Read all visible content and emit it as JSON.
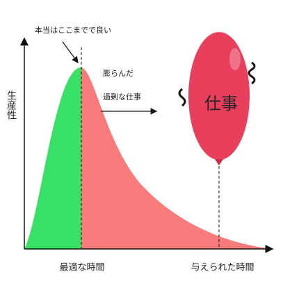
{
  "annotation": "本当はここまでで良い",
  "swollen_label": {
    "line1": "膨らんだ",
    "line2": "過剰な仕事"
  },
  "balloon_label": "仕事",
  "y_axis_label": "生産性",
  "x_labels": {
    "optimal": "最適な時間",
    "given": "与えられた時間"
  }
}
